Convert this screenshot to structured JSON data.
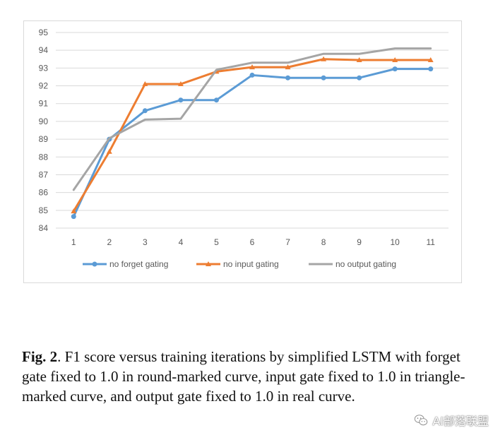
{
  "chart_data": {
    "type": "line",
    "title": "",
    "xlabel": "",
    "ylabel": "",
    "categories": [
      "1",
      "2",
      "3",
      "4",
      "5",
      "6",
      "7",
      "8",
      "9",
      "10",
      "11"
    ],
    "ylim": [
      84,
      95
    ],
    "yticks": [
      "84",
      "85",
      "86",
      "87",
      "88",
      "89",
      "90",
      "91",
      "92",
      "93",
      "94",
      "95"
    ],
    "grid": true,
    "legend": "bottom",
    "series": [
      {
        "name": "no forget gating",
        "color": "#5b9bd5",
        "marker": "circle",
        "values": [
          84.65,
          89.0,
          90.6,
          91.2,
          91.2,
          92.6,
          92.45,
          92.45,
          92.45,
          92.95,
          92.95
        ]
      },
      {
        "name": "no input gating",
        "color": "#ed7d31",
        "marker": "triangle",
        "values": [
          84.95,
          88.3,
          92.1,
          92.1,
          92.8,
          93.05,
          93.05,
          93.5,
          93.45,
          93.45,
          93.45
        ]
      },
      {
        "name": "no output gating",
        "color": "#a5a5a5",
        "marker": "none",
        "values": [
          86.15,
          89.05,
          90.1,
          90.15,
          92.9,
          93.3,
          93.3,
          93.8,
          93.8,
          94.1,
          94.1
        ]
      }
    ]
  },
  "caption": {
    "label": "Fig. 2",
    "text": ". F1 score versus training iterations by simplified LSTM with forget gate fixed to 1.0 in round-marked curve, input gate fixed to 1.0 in triangle-marked curve, and output gate fixed to 1.0 in real curve."
  },
  "watermark": {
    "text": "AI部落联盟",
    "icon": "wechat-icon"
  }
}
